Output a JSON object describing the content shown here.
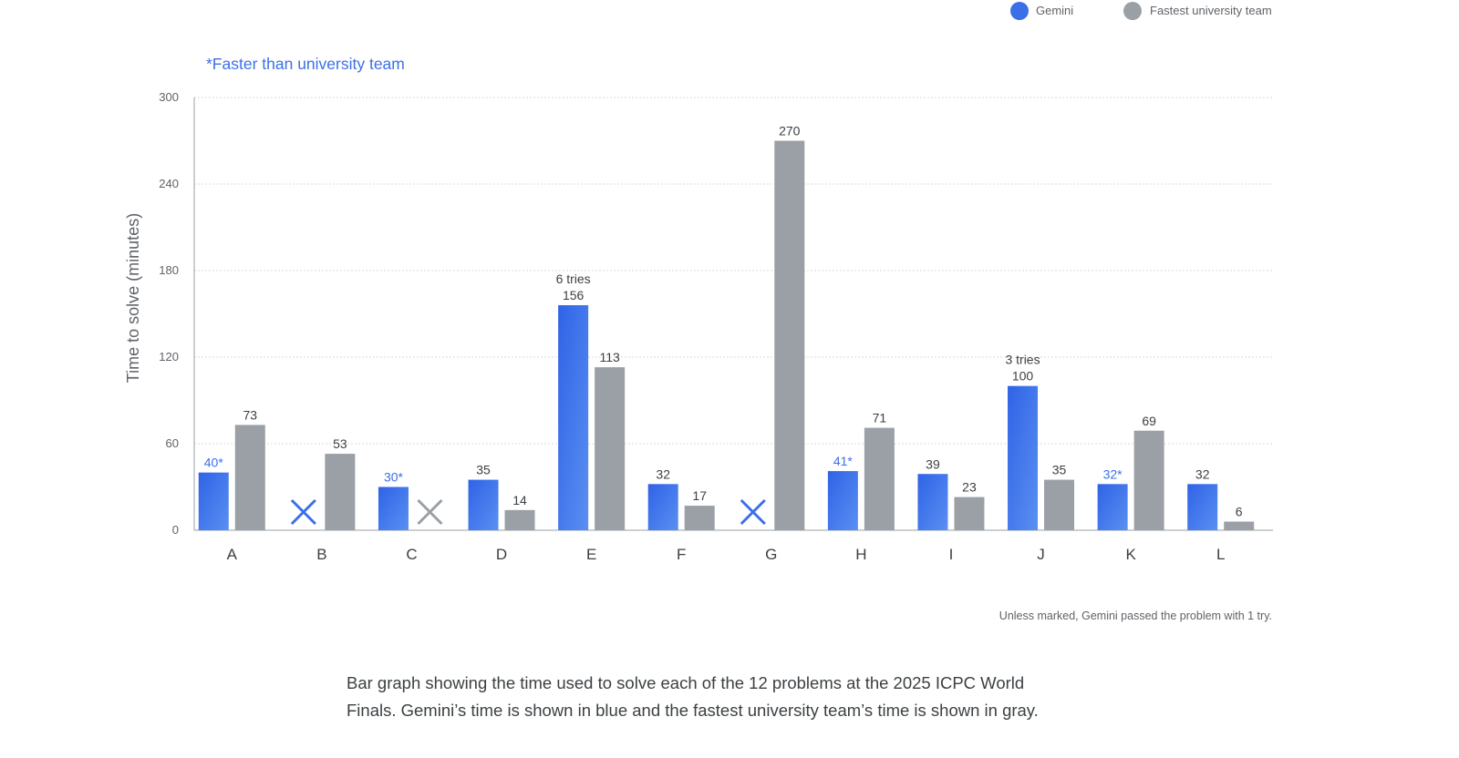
{
  "legend": {
    "items": [
      {
        "label": "Gemini",
        "color": "#3b6fe8"
      },
      {
        "label": "Fastest university team",
        "color": "#9aa0a6"
      }
    ]
  },
  "note_top": "*Faster than university team",
  "note_bottom": "Unless marked, Gemini passed the problem with 1 try.",
  "caption": "Bar graph showing the time used to solve each of the 12 problems at the 2025 ICPC World Finals. Gemini’s time is shown in blue and the fastest university team’s time is shown in gray.",
  "colors": {
    "gemini": "#3b6fe8",
    "team": "#9aa0a6",
    "accent_text": "#3b6fe8",
    "grid": "#d8d8d8",
    "axis": "#9aa0a6"
  },
  "chart_data": {
    "type": "bar",
    "ylabel": "Time to solve (minutes)",
    "xlabel": "",
    "ylim": [
      0,
      300
    ],
    "yticks": [
      0,
      60,
      120,
      180,
      240,
      300
    ],
    "grid": true,
    "legend_position": "top-right",
    "categories": [
      "A",
      "B",
      "C",
      "D",
      "E",
      "F",
      "G",
      "H",
      "I",
      "J",
      "K",
      "L"
    ],
    "series": [
      {
        "name": "Gemini",
        "values": [
          40,
          null,
          30,
          35,
          156,
          32,
          null,
          41,
          39,
          100,
          32,
          32
        ],
        "labels": [
          "40*",
          "",
          "30*",
          "35",
          "156",
          "32",
          "",
          "41*",
          "39",
          "100",
          "32*",
          "32"
        ],
        "unsolved": [
          false,
          true,
          false,
          false,
          false,
          false,
          true,
          false,
          false,
          false,
          false,
          false
        ],
        "notes": [
          "",
          "",
          "",
          "",
          "6 tries",
          "",
          "",
          "",
          "",
          "3 tries",
          "",
          ""
        ]
      },
      {
        "name": "Fastest university team",
        "values": [
          73,
          53,
          null,
          14,
          113,
          17,
          270,
          71,
          23,
          35,
          69,
          6
        ],
        "labels": [
          "73",
          "53",
          "",
          "14",
          "113",
          "17",
          "270",
          "71",
          "23",
          "35",
          "69",
          "6"
        ],
        "unsolved": [
          false,
          false,
          true,
          false,
          false,
          false,
          false,
          false,
          false,
          false,
          false,
          false
        ]
      }
    ]
  }
}
